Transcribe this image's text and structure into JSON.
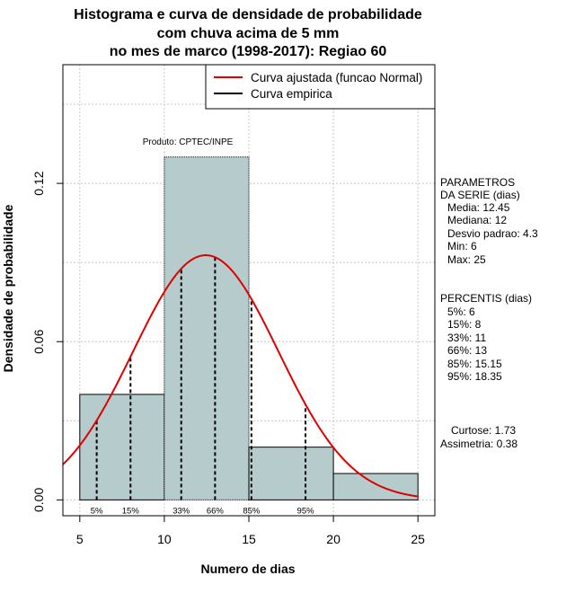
{
  "chart_data": {
    "type": "bar",
    "title_lines": [
      "Histograma e curva de densidade de probabilidade",
      "com chuva acima de 5 mm",
      "no mes de marco (1998-2017): Regiao 60"
    ],
    "xlabel": "Numero de dias",
    "ylabel": "Densidade de probabilidade",
    "xlim": [
      4,
      26
    ],
    "ylim": [
      -0.006,
      0.165
    ],
    "xticks": [
      5,
      10,
      15,
      20,
      25
    ],
    "xtick_labels": [
      "5",
      "10",
      "15",
      "20",
      "25"
    ],
    "yticks": [
      0.0,
      0.06,
      0.12
    ],
    "ytick_labels": [
      "0.00",
      "0.06",
      "0.12"
    ],
    "grid": true,
    "histogram": {
      "bins": [
        {
          "start": 5,
          "end": 10,
          "density": 0.04
        },
        {
          "start": 10,
          "end": 15,
          "density": 0.13
        },
        {
          "start": 15,
          "end": 20,
          "density": 0.02
        },
        {
          "start": 20,
          "end": 25,
          "density": 0.01
        }
      ],
      "fill_color": "#b6cccc"
    },
    "fitted_curve": {
      "name": "Curva ajustada (funcao Normal)",
      "distribution": "normal",
      "mean": 12.45,
      "sd": 4.3,
      "color": "#e00000"
    },
    "empirical_curve": {
      "name": "Curva empirica",
      "color": "#000000"
    },
    "percentile_lines": [
      {
        "label": "5%",
        "x": 6
      },
      {
        "label": "15%",
        "x": 8
      },
      {
        "label": "33%",
        "x": 11
      },
      {
        "label": "66%",
        "x": 13
      },
      {
        "label": "85%",
        "x": 15.15
      },
      {
        "label": "95%",
        "x": 18.35
      }
    ],
    "annotation": "Produto: CPTEC/INPE",
    "legend_position": "top-right"
  },
  "side_panel": {
    "params_title_1": "PARAMETROS",
    "params_title_2": "DA SERIE (dias)",
    "media": "Media: 12.45",
    "mediana": "Mediana: 12",
    "desvio": "Desvio padrao: 4.3",
    "min": "Min: 6",
    "max": "Max: 25",
    "percentis_title": "PERCENTIS (dias)",
    "p5": "5%: 6",
    "p15": "15%: 8",
    "p33": "33%: 11",
    "p66": "66%: 13",
    "p85": "85%: 15.15",
    "p95": "95%: 18.35",
    "curtose": "Curtose: 1.73",
    "assimetria": "Assimetria: 0.38"
  }
}
